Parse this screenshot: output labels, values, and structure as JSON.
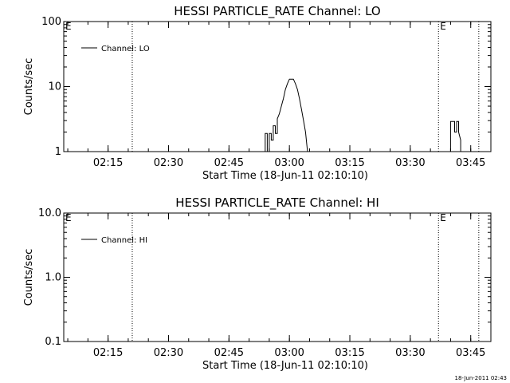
{
  "footer_timestamp": "18-Jun-2011 02:43",
  "chart_data": [
    {
      "type": "line",
      "title": "HESSI PARTICLE_RATE Channel: LO",
      "xlabel": "Start Time (18-Jun-11 02:10:10)",
      "ylabel": "Counts/sec",
      "yscale": "log",
      "ylim": [
        1,
        100
      ],
      "xlim": [
        "02:04",
        "03:50"
      ],
      "x_ticks": [
        "02:15",
        "02:30",
        "02:45",
        "03:00",
        "03:15",
        "03:30",
        "03:45"
      ],
      "y_ticks": [
        "1",
        "10",
        "100"
      ],
      "legend": {
        "position": "top-left",
        "entries": [
          "Channel: LO"
        ]
      },
      "event_markers": [
        {
          "time": "02:21",
          "label": ""
        },
        {
          "time": "03:37",
          "label": "E"
        },
        {
          "time": "03:47",
          "label": ""
        }
      ],
      "left_marker_label": "E",
      "series": [
        {
          "name": "Channel: LO",
          "points": [
            [
              "02:54.0",
              1.0
            ],
            [
              "02:54.0",
              1.9
            ],
            [
              "02:54.5",
              1.9
            ],
            [
              "02:54.5",
              1.0
            ],
            [
              "02:55.0",
              1.0
            ],
            [
              "02:55.0",
              1.9
            ],
            [
              "02:55.5",
              1.9
            ],
            [
              "02:55.5",
              1.5
            ],
            [
              "02:56.0",
              1.5
            ],
            [
              "02:56.0",
              2.5
            ],
            [
              "02:56.5",
              2.5
            ],
            [
              "02:56.5",
              1.9
            ],
            [
              "02:57.0",
              1.9
            ],
            [
              "02:57.0",
              3.2
            ],
            [
              "02:57.5",
              3.8
            ],
            [
              "02:58.0",
              5.0
            ],
            [
              "02:58.5",
              6.5
            ],
            [
              "02:59.0",
              9.0
            ],
            [
              "02:59.5",
              11.0
            ],
            [
              "03:00.0",
              13.0
            ],
            [
              "03:01.0",
              13.0
            ],
            [
              "03:01.5",
              11.0
            ],
            [
              "03:02.0",
              9.0
            ],
            [
              "03:02.5",
              6.5
            ],
            [
              "03:03.0",
              4.5
            ],
            [
              "03:03.5",
              3.0
            ],
            [
              "03:04.0",
              2.0
            ],
            [
              "03:04.5",
              1.0
            ],
            [
              null,
              null
            ],
            [
              "03:40.0",
              1.0
            ],
            [
              "03:40.0",
              2.9
            ],
            [
              "03:41.0",
              2.9
            ],
            [
              "03:41.0",
              2.0
            ],
            [
              "03:41.5",
              2.0
            ],
            [
              "03:41.5",
              2.9
            ],
            [
              "03:42.0",
              2.9
            ],
            [
              "03:42.0",
              2.0
            ],
            [
              "03:42.5",
              1.5
            ],
            [
              "03:42.5",
              1.0
            ]
          ]
        }
      ]
    },
    {
      "type": "line",
      "title": "HESSI PARTICLE_RATE Channel: HI",
      "xlabel": "Start Time (18-Jun-11 02:10:10)",
      "ylabel": "Counts/sec",
      "yscale": "log",
      "ylim": [
        0.1,
        10
      ],
      "xlim": [
        "02:04",
        "03:50"
      ],
      "x_ticks": [
        "02:15",
        "02:30",
        "02:45",
        "03:00",
        "03:15",
        "03:30",
        "03:45"
      ],
      "y_ticks": [
        "0.1",
        "1.0",
        "10.0"
      ],
      "legend": {
        "position": "top-left",
        "entries": [
          "Channel: HI"
        ]
      },
      "event_markers": [
        {
          "time": "02:21",
          "label": ""
        },
        {
          "time": "03:37",
          "label": "E"
        },
        {
          "time": "03:47",
          "label": ""
        }
      ],
      "left_marker_label": "E",
      "series": [
        {
          "name": "Channel: HI",
          "points": []
        }
      ]
    }
  ]
}
